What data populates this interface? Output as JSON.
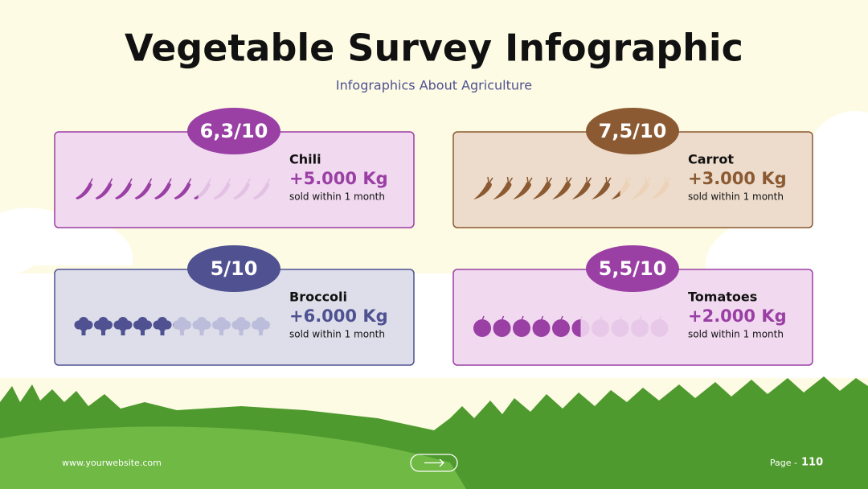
{
  "header": {
    "title": "Vegetable Survey Infographic",
    "subtitle": "Infographics About Agriculture"
  },
  "score_max": 10,
  "cards": [
    {
      "score": {
        "value": 6.3,
        "label": "6,3/10"
      },
      "name": "Chili",
      "amount": "+5.000 Kg",
      "note": "sold within 1 month",
      "icon": "chili",
      "color": "#9a3fa4",
      "light": "#e2c1e3",
      "bg": "#f1d9f0",
      "badge": "#9a3fa4"
    },
    {
      "score": {
        "value": 7.5,
        "label": "7,5/10"
      },
      "name": "Carrot",
      "amount": "+3.000 Kg",
      "note": "sold within 1 month",
      "icon": "carrot",
      "color": "#8b5a32",
      "light": "#ecd2b8",
      "bg": "#eddccc",
      "badge": "#8b5a32"
    },
    {
      "score": {
        "value": 5,
        "label": "5/10"
      },
      "name": "Broccoli",
      "amount": "+6.000 Kg",
      "note": "sold within 1 month",
      "icon": "broccoli",
      "color": "#4f5191",
      "light": "#bcbddb",
      "bg": "#dddeea",
      "badge": "#4f5191"
    },
    {
      "score": {
        "value": 5.5,
        "label": "5,5/10"
      },
      "name": "Tomatoes",
      "amount": "+2.000 Kg",
      "note": "sold within 1 month",
      "icon": "tomato",
      "color": "#9a3fa4",
      "light": "#e8c8e8",
      "bg": "#f1d9f0",
      "badge": "#9a3fa4"
    }
  ],
  "footer": {
    "website": "www.yourwebsite.com",
    "page_label": "Page -",
    "page_number": "110"
  }
}
